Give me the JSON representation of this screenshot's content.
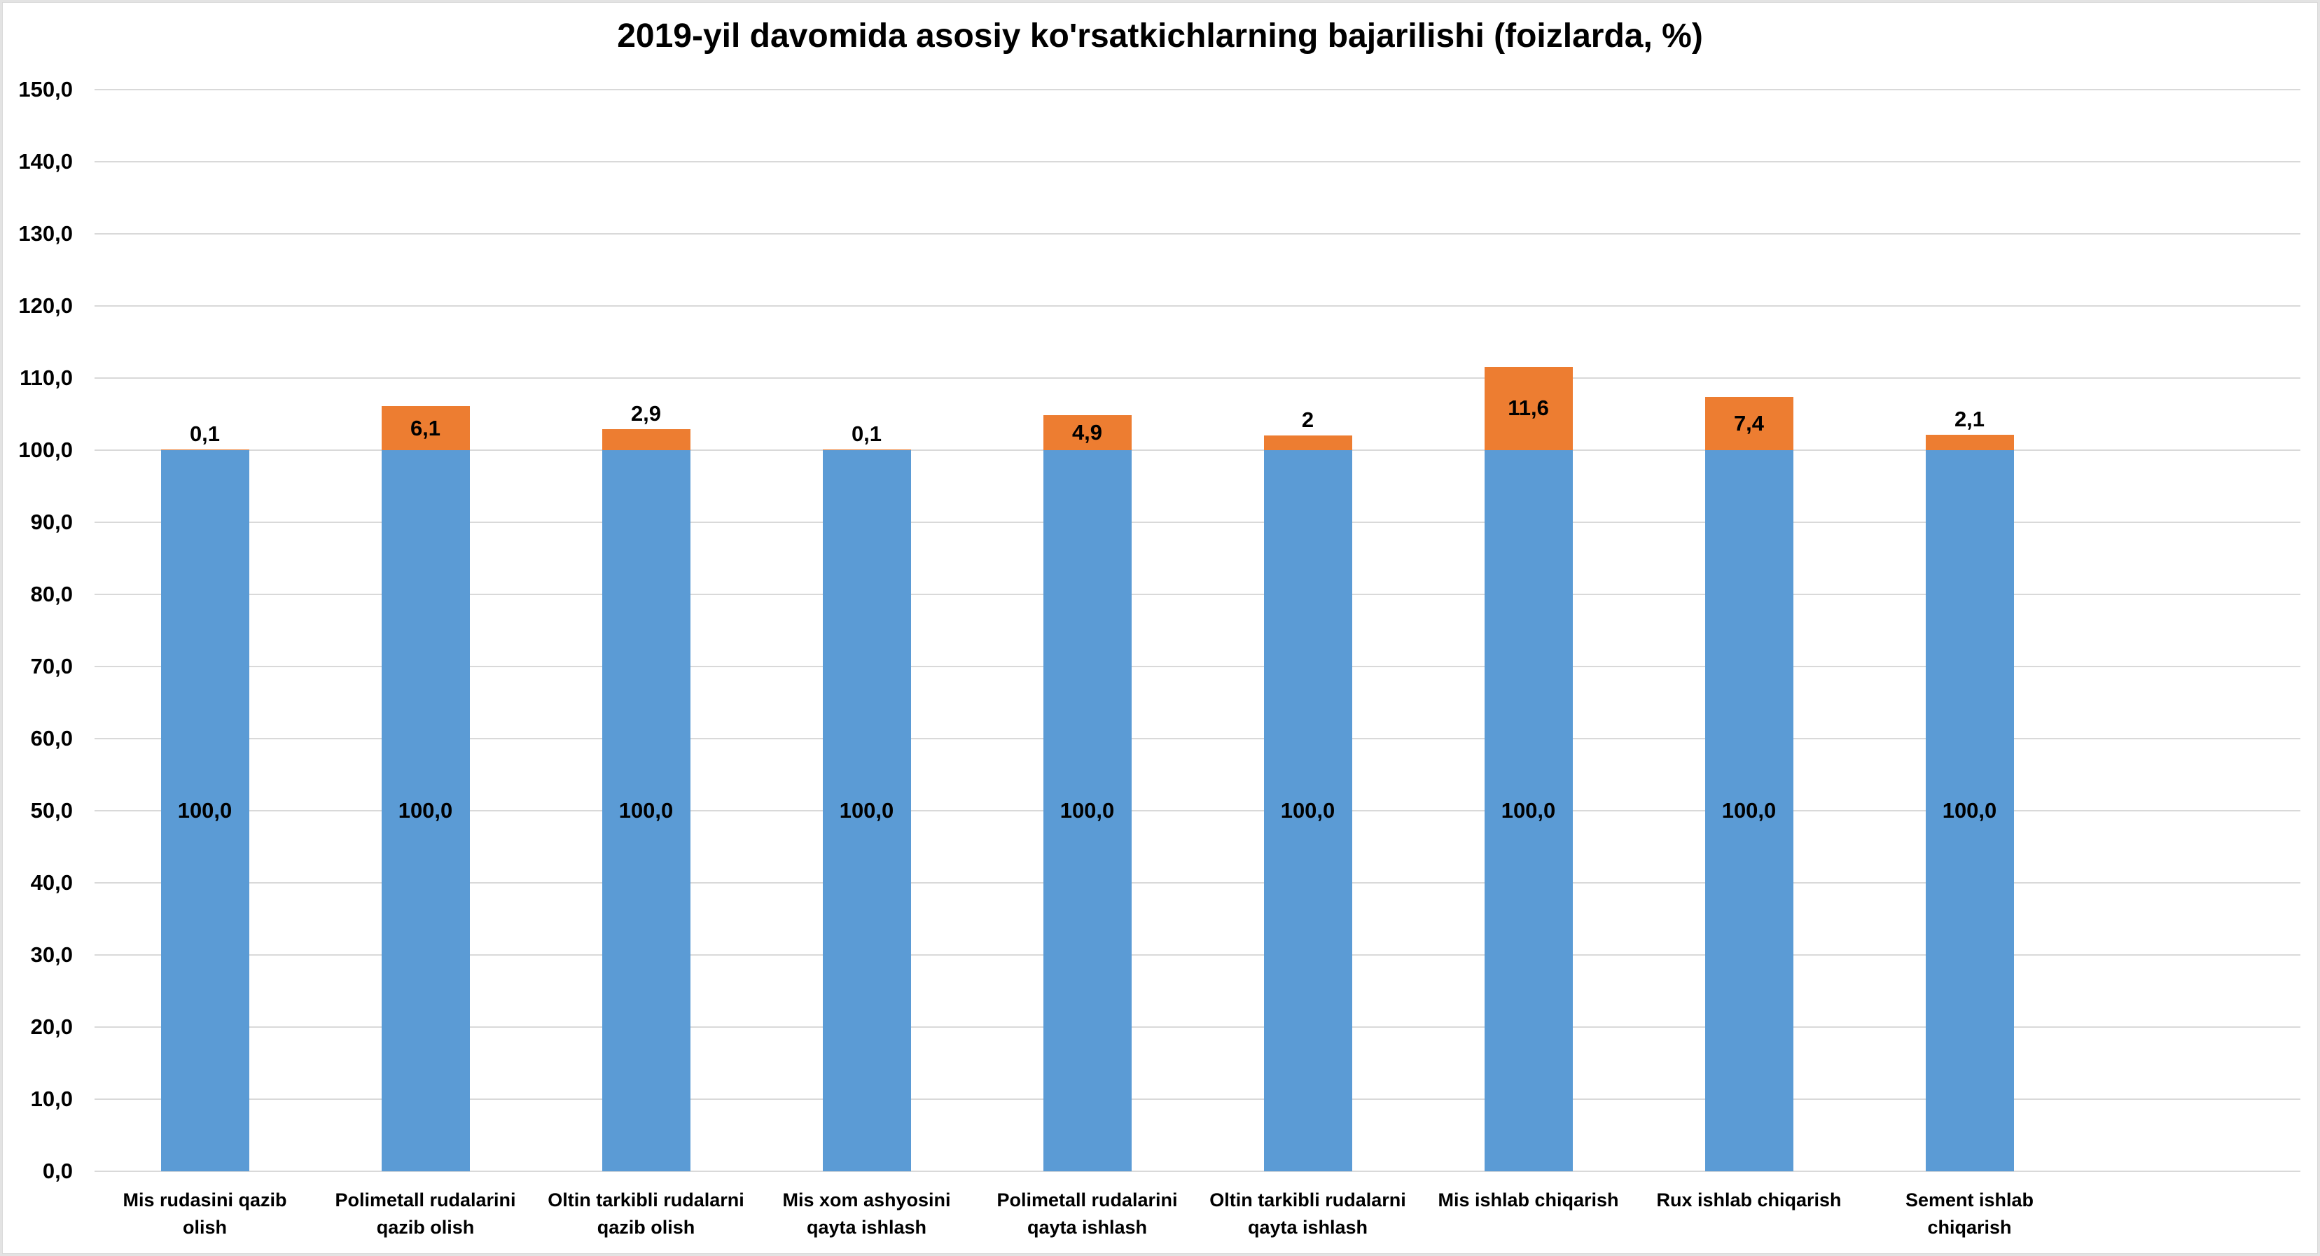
{
  "page": {
    "background": "#FFFFFF",
    "frame_border_color": "#D9D9D9"
  },
  "chart_data": {
    "type": "bar",
    "stacked": true,
    "title": "2019-yil davomida asosiy ko'rsatkichlarning bajarilishi (foizlarda, %)",
    "categories": [
      "Mis rudasini qazib olish",
      "Polimetall rudalarini qazib olish",
      "Oltin tarkibli rudalarni qazib olish",
      "Mis xom ashyosini qayta ishlash",
      "Polimetall rudalarini qayta ishlash",
      "Oltin tarkibli rudalarni qayta ishlash",
      "Mis ishlab chiqarish",
      "Rux ishlab chiqarish",
      "Sement ishlab chiqarish"
    ],
    "category_label_lines": [
      [
        "Mis rudasini qazib",
        "olish"
      ],
      [
        "Polimetall rudalarini",
        "qazib olish"
      ],
      [
        "Oltin tarkibli rudalarni",
        "qazib olish"
      ],
      [
        "Mis xom ashyosini",
        "qayta ishlash"
      ],
      [
        "Polimetall rudalarini",
        "qayta ishlash"
      ],
      [
        "Oltin tarkibli rudalarni",
        "qayta ishlash"
      ],
      [
        "Mis ishlab chiqarish"
      ],
      [
        "Rux ishlab chiqarish"
      ],
      [
        "Sement ishlab",
        "chiqarish"
      ]
    ],
    "series": [
      {
        "name": "series-1",
        "color": "#5B9BD5",
        "values": [
          100,
          100,
          100,
          100,
          100,
          100,
          100,
          100,
          100
        ],
        "data_labels": [
          "100,0",
          "100,0",
          "100,0",
          "100,0",
          "100,0",
          "100,0",
          "100,0",
          "100,0",
          "100,0"
        ]
      },
      {
        "name": "series-2",
        "color": "#ED7D31",
        "values": [
          0.1,
          6.1,
          2.9,
          0.1,
          4.9,
          2,
          11.6,
          7.4,
          2.1
        ],
        "data_labels": [
          "0,1",
          "6,1",
          "2,9",
          "0,1",
          "4,9",
          "2",
          "11,6",
          "7,4",
          "2,1"
        ]
      }
    ],
    "ylim": [
      0,
      150
    ],
    "ytick_step": 10,
    "ytick_labels": [
      "0,0",
      "10,0",
      "20,0",
      "30,0",
      "40,0",
      "50,0",
      "60,0",
      "70,0",
      "80,0",
      "90,0",
      "100,0",
      "110,0",
      "120,0",
      "130,0",
      "140,0",
      "150,0"
    ],
    "grid": true,
    "gridline_color": "#D9D9D9",
    "legend": "none",
    "data_label_color": "#000000"
  }
}
